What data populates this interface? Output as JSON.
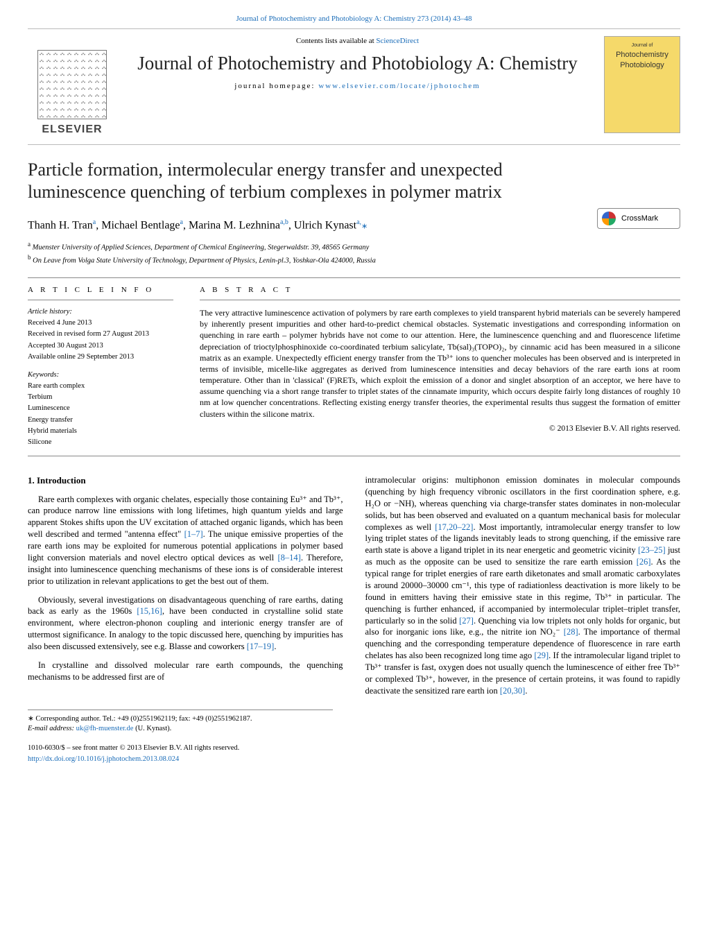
{
  "top_link": {
    "citation": "Journal of Photochemistry and Photobiology A: Chemistry 273 (2014) 43–48",
    "url_text": "Journal of Photochemistry and Photobiology A: Chemistry 273 (2014) 43–48"
  },
  "header": {
    "contents_prefix": "Contents lists available at ",
    "contents_link": "ScienceDirect",
    "journal_name": "Journal of Photochemistry and Photobiology A: Chemistry",
    "homepage_prefix": "journal homepage: ",
    "homepage_url": "www.elsevier.com/locate/jphotochem",
    "publisher_logo_text": "ELSEVIER",
    "thumb_line1": "Journal of",
    "thumb_line2": "Photochemistry",
    "thumb_line3": "Photobiology"
  },
  "crossmark_label": "CrossMark",
  "article": {
    "title": "Particle formation, intermolecular energy transfer and unexpected luminescence quenching of terbium complexes in polymer matrix",
    "authors_html": "Thanh H. Tran",
    "author1": "Thanh H. Tran",
    "aff1sup": "a",
    "author2": "Michael Bentlage",
    "aff2sup": "a",
    "author3": "Marina M. Lezhnina",
    "aff3sup": "a,b",
    "author4": "Ulrich Kynast",
    "aff4sup": "a,",
    "corr_marker": "∗",
    "affiliation_a": "Muenster University of Applied Sciences, Department of Chemical Engineering, Stegerwaldstr. 39, 48565 Germany",
    "affiliation_b": "On Leave from Volga State University of Technology, Department of Physics, Lenin-pl.3, Yoshkar-Ola 424000, Russia"
  },
  "info": {
    "heading": "a r t i c l e   i n f o",
    "history_label": "Article history:",
    "received": "Received 4 June 2013",
    "revised": "Received in revised form 27 August 2013",
    "accepted": "Accepted 30 August 2013",
    "online": "Available online 29 September 2013",
    "keywords_label": "Keywords:",
    "keywords": [
      "Rare earth complex",
      "Terbium",
      "Luminescence",
      "Energy transfer",
      "Hybrid materials",
      "Silicone"
    ]
  },
  "abstract": {
    "heading": "a b s t r a c t",
    "text": "The very attractive luminescence activation of polymers by rare earth complexes to yield transparent hybrid materials can be severely hampered by inherently present impurities and other hard-to-predict chemical obstacles. Systematic investigations and corresponding information on quenching in rare earth – polymer hybrids have not come to our attention. Here, the luminescence quenching and and fluorescence lifetime depreciation of trioctylphosphinoxide co-coordinated terbium salicylate, Tb(sal)₃(TOPO)₂, by cinnamic acid has been measured in a silicone matrix as an example. Unexpectedly efficient energy transfer from the Tb³⁺ ions to quencher molecules has been observed and is interpreted in terms of invisible, micelle-like aggregates as derived from luminescence intensities and decay behaviors of the rare earth ions at room temperature. Other than in 'classical' (F)RETs, which exploit the emission of a donor and singlet absorption of an acceptor, we here have to assume quenching via a short range transfer to triplet states of the cinnamate impurity, which occurs despite fairly long distances of roughly 10 nm at low quencher concentrations. Reflecting existing energy transfer theories, the experimental results thus suggest the formation of emitter clusters within the silicone matrix.",
    "copyright": "© 2013 Elsevier B.V. All rights reserved."
  },
  "body": {
    "section_heading": "1.  Introduction",
    "p1_a": "Rare earth complexes with organic chelates, especially those containing Eu³⁺ and Tb³⁺, can produce narrow line emissions with long lifetimes, high quantum yields and large apparent Stokes shifts upon the UV excitation of attached organic ligands, which has been well described and termed \"antenna effect\" ",
    "p1_ref1": "[1–7]",
    "p1_b": ". The unique emissive properties of the rare earth ions may be exploited for numerous potential applications in polymer based light conversion materials and novel electro optical devices as well ",
    "p1_ref2": "[8–14]",
    "p1_c": ". Therefore, insight into luminescence quenching mechanisms of these ions is of considerable interest prior to utilization in relevant applications to get the best out of them.",
    "p2_a": "Obviously, several investigations on disadvantageous quenching of rare earths, dating back as early as the 1960s ",
    "p2_ref1": "[15,16]",
    "p2_b": ", have been conducted in crystalline solid state environment, where electron-phonon coupling and interionic energy transfer are of uttermost significance. In analogy to the topic discussed here, quenching by impurities has also been discussed extensively, see e.g. Blasse and coworkers ",
    "p2_ref2": "[17–19]",
    "p2_c": ".",
    "p3": "In crystalline and dissolved molecular rare earth compounds, the quenching mechanisms to be addressed first are of",
    "p4_a": "intramolecular origins: multiphonon emission dominates in molecular compounds (quenching by high frequency vibronic oscillators in the first coordination sphere, e.g. H₂O or −NH), whereas quenching via charge-transfer states dominates in non-molecular solids, but has been observed and evaluated on a quantum mechanical basis for molecular complexes as well ",
    "p4_ref1": "[17,20–22]",
    "p4_b": ". Most importantly, intramolecular energy transfer to low lying triplet states of the ligands inevitably leads to strong quenching, if the emissive rare earth state is above a ligand triplet in its near energetic and geometric vicinity ",
    "p4_ref2": "[23–25]",
    "p4_c": " just as much as the opposite can be used to sensitize the rare earth emission ",
    "p4_ref3": "[26]",
    "p4_d": ". As the typical range for triplet energies of rare earth diketonates and small aromatic carboxylates is around 20000–30000 cm⁻¹, this type of radiationless deactivation is more likely to be found in emitters having their emissive state in this regime, Tb³⁺ in particular. The quenching is further enhanced, if accompanied by intermolecular triplet–triplet transfer, particularly so in the solid ",
    "p4_ref4": "[27]",
    "p4_e": ". Quenching via low triplets not only holds for organic, but also for inorganic ions like, e.g., the nitrite ion NO₂⁻ ",
    "p4_ref5": "[28]",
    "p4_f": ". The importance of thermal quenching and the corresponding temperature dependence of fluorescence in rare earth chelates has also been recognized long time ago ",
    "p4_ref6": "[29]",
    "p4_g": ". If the intramolecular ligand triplet to Tb³⁺ transfer is fast, oxygen does not usually quench the luminescence of either free Tb³⁺ or complexed Tb³⁺, however, in the presence of certain proteins, it was found to rapidly deactivate the sensitized rare earth ion ",
    "p4_ref7": "[20,30]",
    "p4_h": "."
  },
  "footer": {
    "corr_text": "∗ Corresponding author. Tel.: +49 (0)2551962119; fax: +49 (0)2551962187.",
    "email_label": "E-mail address: ",
    "email": "uk@fh-muenster.de",
    "email_suffix": " (U. Kynast).",
    "copyright": "1010-6030/$ – see front matter © 2013 Elsevier B.V. All rights reserved.",
    "doi": "http://dx.doi.org/10.1016/j.jphotochem.2013.08.024"
  },
  "colors": {
    "link": "#1a6cb8",
    "rule": "#888888",
    "thumb_bg": "#f5d96a"
  }
}
